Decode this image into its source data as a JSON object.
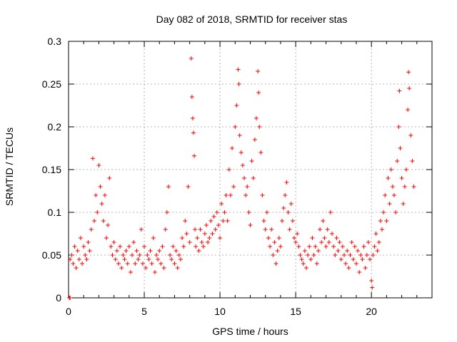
{
  "chart_data": {
    "type": "scatter",
    "title": "Day 082 of 2018, SRMTID for receiver stas",
    "xlabel": "GPS time / hours",
    "ylabel": "SRMTID / TECUs",
    "xlim": [
      0,
      24
    ],
    "ylim": [
      0,
      0.3
    ],
    "xticks": [
      0,
      5,
      10,
      15,
      20
    ],
    "yticks": [
      0,
      0.05,
      0.1,
      0.15,
      0.2,
      0.25,
      0.3
    ],
    "xtick_labels": [
      "0",
      "5",
      "10",
      "15",
      "20"
    ],
    "ytick_labels": [
      "0",
      "0.05",
      "0.1",
      "0.15",
      "0.2",
      "0.25",
      "0.3"
    ],
    "grid": true,
    "marker": "+",
    "color": "#ff0000",
    "series": [
      {
        "name": "SRMTID",
        "points": [
          [
            0.05,
            0.0
          ],
          [
            0.1,
            0.0
          ],
          [
            0.1,
            0.045
          ],
          [
            0.2,
            0.05
          ],
          [
            0.3,
            0.04
          ],
          [
            0.4,
            0.06
          ],
          [
            0.5,
            0.035
          ],
          [
            0.6,
            0.055
          ],
          [
            0.7,
            0.045
          ],
          [
            0.8,
            0.07
          ],
          [
            0.9,
            0.04
          ],
          [
            1.0,
            0.06
          ],
          [
            1.1,
            0.05
          ],
          [
            1.2,
            0.045
          ],
          [
            1.3,
            0.065
          ],
          [
            1.4,
            0.055
          ],
          [
            1.5,
            0.08
          ],
          [
            1.6,
            0.163
          ],
          [
            1.7,
            0.09
          ],
          [
            1.8,
            0.12
          ],
          [
            1.9,
            0.1
          ],
          [
            2.0,
            0.155
          ],
          [
            2.1,
            0.13
          ],
          [
            2.2,
            0.11
          ],
          [
            2.3,
            0.09
          ],
          [
            2.4,
            0.12
          ],
          [
            2.5,
            0.07
          ],
          [
            2.6,
            0.085
          ],
          [
            2.7,
            0.14
          ],
          [
            2.8,
            0.06
          ],
          [
            2.9,
            0.05
          ],
          [
            3.0,
            0.065
          ],
          [
            3.1,
            0.045
          ],
          [
            3.2,
            0.055
          ],
          [
            3.3,
            0.04
          ],
          [
            3.4,
            0.06
          ],
          [
            3.5,
            0.035
          ],
          [
            3.6,
            0.05
          ],
          [
            3.7,
            0.045
          ],
          [
            3.8,
            0.055
          ],
          [
            3.9,
            0.04
          ],
          [
            4.0,
            0.06
          ],
          [
            4.1,
            0.03
          ],
          [
            4.2,
            0.05
          ],
          [
            4.3,
            0.065
          ],
          [
            4.4,
            0.04
          ],
          [
            4.5,
            0.055
          ],
          [
            4.6,
            0.045
          ],
          [
            4.7,
            0.05
          ],
          [
            4.8,
            0.08
          ],
          [
            4.9,
            0.04
          ],
          [
            5.0,
            0.06
          ],
          [
            5.1,
            0.035
          ],
          [
            5.2,
            0.05
          ],
          [
            5.3,
            0.045
          ],
          [
            5.4,
            0.055
          ],
          [
            5.5,
            0.04
          ],
          [
            5.6,
            0.07
          ],
          [
            5.7,
            0.03
          ],
          [
            5.8,
            0.05
          ],
          [
            5.9,
            0.045
          ],
          [
            6.0,
            0.055
          ],
          [
            6.1,
            0.04
          ],
          [
            6.2,
            0.06
          ],
          [
            6.3,
            0.035
          ],
          [
            6.4,
            0.08
          ],
          [
            6.5,
            0.1
          ],
          [
            6.6,
            0.13
          ],
          [
            6.7,
            0.05
          ],
          [
            6.8,
            0.045
          ],
          [
            6.9,
            0.06
          ],
          [
            7.0,
            0.04
          ],
          [
            7.1,
            0.055
          ],
          [
            7.2,
            0.035
          ],
          [
            7.3,
            0.05
          ],
          [
            7.4,
            0.045
          ],
          [
            7.5,
            0.07
          ],
          [
            7.6,
            0.06
          ],
          [
            7.7,
            0.09
          ],
          [
            7.8,
            0.075
          ],
          [
            7.9,
            0.13
          ],
          [
            8.0,
            0.065
          ],
          [
            8.1,
            0.28
          ],
          [
            8.15,
            0.235
          ],
          [
            8.2,
            0.21
          ],
          [
            8.25,
            0.193
          ],
          [
            8.3,
            0.166
          ],
          [
            8.35,
            0.08
          ],
          [
            8.4,
            0.06
          ],
          [
            8.5,
            0.07
          ],
          [
            8.6,
            0.055
          ],
          [
            8.7,
            0.08
          ],
          [
            8.8,
            0.065
          ],
          [
            8.9,
            0.06
          ],
          [
            9.0,
            0.075
          ],
          [
            9.1,
            0.085
          ],
          [
            9.2,
            0.065
          ],
          [
            9.3,
            0.07
          ],
          [
            9.4,
            0.09
          ],
          [
            9.5,
            0.075
          ],
          [
            9.6,
            0.095
          ],
          [
            9.7,
            0.08
          ],
          [
            9.8,
            0.1
          ],
          [
            9.9,
            0.085
          ],
          [
            10.0,
            0.07
          ],
          [
            10.1,
            0.11
          ],
          [
            10.2,
            0.09
          ],
          [
            10.3,
            0.1
          ],
          [
            10.4,
            0.12
          ],
          [
            10.5,
            0.09
          ],
          [
            10.6,
            0.15
          ],
          [
            10.7,
            0.12
          ],
          [
            10.8,
            0.175
          ],
          [
            10.9,
            0.13
          ],
          [
            11.0,
            0.2
          ],
          [
            11.1,
            0.225
          ],
          [
            11.2,
            0.267
          ],
          [
            11.25,
            0.25
          ],
          [
            11.3,
            0.19
          ],
          [
            11.4,
            0.17
          ],
          [
            11.5,
            0.155
          ],
          [
            11.6,
            0.14
          ],
          [
            11.7,
            0.12
          ],
          [
            11.8,
            0.13
          ],
          [
            11.9,
            0.1
          ],
          [
            12.0,
            0.085
          ],
          [
            12.1,
            0.16
          ],
          [
            12.2,
            0.14
          ],
          [
            12.3,
            0.185
          ],
          [
            12.4,
            0.21
          ],
          [
            12.5,
            0.265
          ],
          [
            12.55,
            0.24
          ],
          [
            12.6,
            0.2
          ],
          [
            12.7,
            0.17
          ],
          [
            12.8,
            0.12
          ],
          [
            12.9,
            0.09
          ],
          [
            13.0,
            0.08
          ],
          [
            13.1,
            0.1
          ],
          [
            13.2,
            0.07
          ],
          [
            13.3,
            0.06
          ],
          [
            13.4,
            0.08
          ],
          [
            13.5,
            0.05
          ],
          [
            13.6,
            0.065
          ],
          [
            13.7,
            0.04
          ],
          [
            13.8,
            0.055
          ],
          [
            13.9,
            0.07
          ],
          [
            14.0,
            0.06
          ],
          [
            14.1,
            0.09
          ],
          [
            14.2,
            0.105
          ],
          [
            14.3,
            0.12
          ],
          [
            14.4,
            0.135
          ],
          [
            14.5,
            0.1
          ],
          [
            14.6,
            0.08
          ],
          [
            14.7,
            0.11
          ],
          [
            14.8,
            0.09
          ],
          [
            14.9,
            0.07
          ],
          [
            15.0,
            0.065
          ],
          [
            15.1,
            0.075
          ],
          [
            15.2,
            0.06
          ],
          [
            15.3,
            0.05
          ],
          [
            15.4,
            0.045
          ],
          [
            15.5,
            0.04
          ],
          [
            15.6,
            0.055
          ],
          [
            15.7,
            0.035
          ],
          [
            15.8,
            0.05
          ],
          [
            15.9,
            0.06
          ],
          [
            16.0,
            0.045
          ],
          [
            16.1,
            0.07
          ],
          [
            16.2,
            0.05
          ],
          [
            16.3,
            0.06
          ],
          [
            16.4,
            0.04
          ],
          [
            16.5,
            0.055
          ],
          [
            16.6,
            0.08
          ],
          [
            16.7,
            0.065
          ],
          [
            16.8,
            0.09
          ],
          [
            16.9,
            0.07
          ],
          [
            17.0,
            0.06
          ],
          [
            17.1,
            0.08
          ],
          [
            17.2,
            0.065
          ],
          [
            17.3,
            0.1
          ],
          [
            17.4,
            0.075
          ],
          [
            17.5,
            0.06
          ],
          [
            17.6,
            0.05
          ],
          [
            17.7,
            0.07
          ],
          [
            17.8,
            0.055
          ],
          [
            17.9,
            0.065
          ],
          [
            18.0,
            0.045
          ],
          [
            18.1,
            0.06
          ],
          [
            18.2,
            0.05
          ],
          [
            18.3,
            0.04
          ],
          [
            18.4,
            0.055
          ],
          [
            18.5,
            0.035
          ],
          [
            18.6,
            0.05
          ],
          [
            18.7,
            0.065
          ],
          [
            18.8,
            0.045
          ],
          [
            18.9,
            0.06
          ],
          [
            19.0,
            0.04
          ],
          [
            19.1,
            0.055
          ],
          [
            19.2,
            0.03
          ],
          [
            19.3,
            0.05
          ],
          [
            19.4,
            0.045
          ],
          [
            19.5,
            0.06
          ],
          [
            19.6,
            0.035
          ],
          [
            19.7,
            0.05
          ],
          [
            19.8,
            0.065
          ],
          [
            19.9,
            0.045
          ],
          [
            20.0,
            0.02
          ],
          [
            20.05,
            0.012
          ],
          [
            20.1,
            0.05
          ],
          [
            20.2,
            0.06
          ],
          [
            20.3,
            0.075
          ],
          [
            20.4,
            0.055
          ],
          [
            20.5,
            0.065
          ],
          [
            20.6,
            0.09
          ],
          [
            20.7,
            0.08
          ],
          [
            20.8,
            0.1
          ],
          [
            20.9,
            0.12
          ],
          [
            21.0,
            0.09
          ],
          [
            21.1,
            0.14
          ],
          [
            21.2,
            0.11
          ],
          [
            21.3,
            0.15
          ],
          [
            21.4,
            0.13
          ],
          [
            21.5,
            0.12
          ],
          [
            21.6,
            0.1
          ],
          [
            21.7,
            0.16
          ],
          [
            21.8,
            0.2
          ],
          [
            21.85,
            0.242
          ],
          [
            21.9,
            0.175
          ],
          [
            22.0,
            0.14
          ],
          [
            22.1,
            0.11
          ],
          [
            22.2,
            0.13
          ],
          [
            22.3,
            0.15
          ],
          [
            22.4,
            0.22
          ],
          [
            22.45,
            0.264
          ],
          [
            22.5,
            0.245
          ],
          [
            22.6,
            0.19
          ],
          [
            22.7,
            0.16
          ],
          [
            22.8,
            0.13
          ]
        ]
      }
    ]
  }
}
